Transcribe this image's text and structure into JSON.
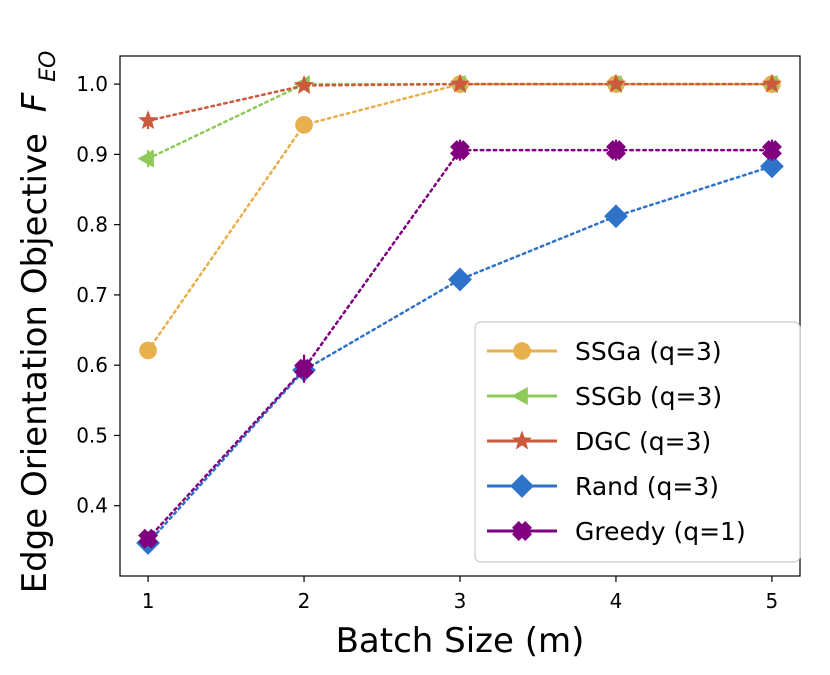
{
  "chart_data": {
    "type": "line",
    "xlabel": "Batch Size (m)",
    "ylabel": "Edge Orientation Objective",
    "ylabel_symbol": "F",
    "ylabel_subscript": "EO",
    "x": [
      1,
      2,
      3,
      4,
      5
    ],
    "xlim": [
      0.82,
      5.18
    ],
    "ylim": [
      0.3,
      1.04
    ],
    "x_ticks": [
      "1",
      "2",
      "3",
      "4",
      "5"
    ],
    "y_ticks": [
      "0.4",
      "0.5",
      "0.6",
      "0.7",
      "0.8",
      "0.9",
      "1.0"
    ],
    "grid": false,
    "legend_position": "bottom-right",
    "series": [
      {
        "name": "SSGa (q=3)",
        "color": "#e8b04c",
        "marker": "circle",
        "values": [
          0.621,
          0.942,
          1.0,
          1.0,
          1.0
        ],
        "errors": [
          0.006,
          0.004,
          0.003,
          0.003,
          0.003
        ]
      },
      {
        "name": "SSGb (q=3)",
        "color": "#8fc95a",
        "marker": "triangle-left",
        "values": [
          0.894,
          1.0,
          1.0,
          1.0,
          1.0
        ],
        "errors": [
          0.012,
          0.003,
          0.003,
          0.003,
          0.003
        ]
      },
      {
        "name": "DGC (q=3)",
        "color": "#cc5a3c",
        "marker": "star",
        "values": [
          0.948,
          0.998,
          1.0,
          1.0,
          1.0
        ],
        "errors": [
          0.012,
          0.004,
          0.003,
          0.003,
          0.003
        ]
      },
      {
        "name": "Rand (q=3)",
        "color": "#2e73c9",
        "marker": "diamond",
        "values": [
          0.347,
          0.593,
          0.722,
          0.812,
          0.883
        ],
        "errors": [
          0.005,
          0.016,
          0.012,
          0.008,
          0.007
        ]
      },
      {
        "name": "Greedy (q=1)",
        "color": "#800080",
        "marker": "plus-filled",
        "values": [
          0.353,
          0.595,
          0.906,
          0.906,
          0.906
        ],
        "errors": [
          0.005,
          0.02,
          0.015,
          0.015,
          0.015
        ]
      }
    ]
  }
}
